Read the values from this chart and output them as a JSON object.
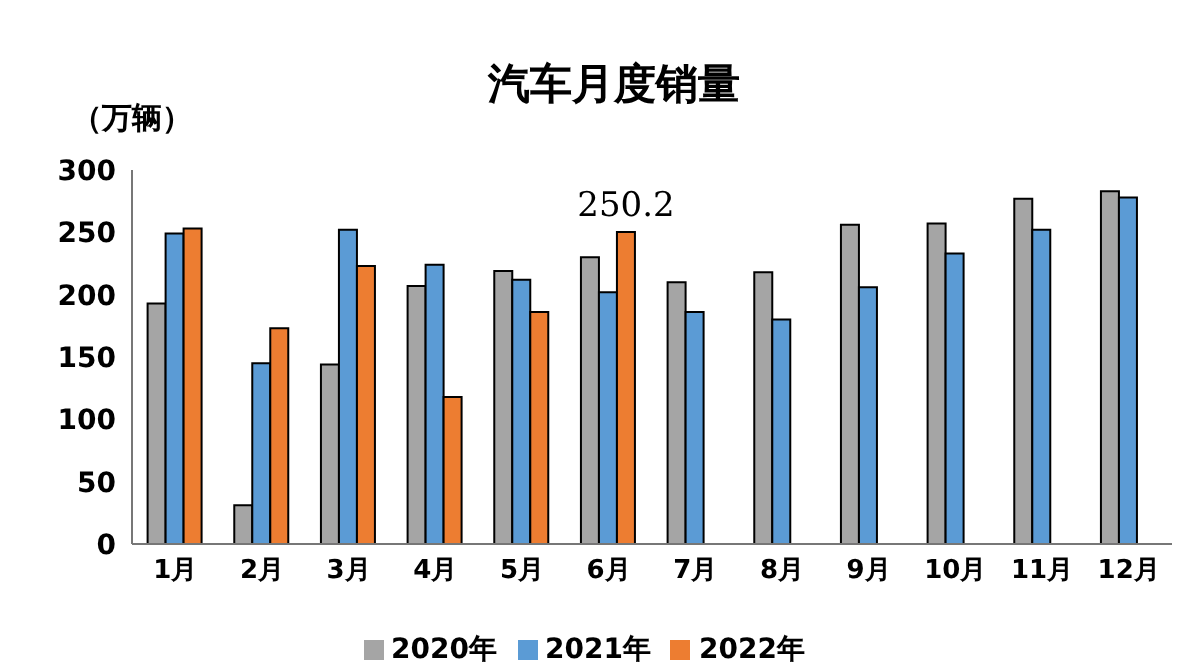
{
  "chart_data": {
    "type": "bar",
    "title": "汽车月度销量",
    "ylabel": "（万辆）",
    "categories": [
      "1月",
      "2月",
      "3月",
      "4月",
      "5月",
      "6月",
      "7月",
      "8月",
      "9月",
      "10月",
      "11月",
      "12月"
    ],
    "series": [
      {
        "name": "2020年",
        "color": "#a5a5a5",
        "values": [
          193,
          31,
          144,
          207,
          219,
          230,
          210,
          218,
          256,
          257,
          277,
          283
        ]
      },
      {
        "name": "2021年",
        "color": "#5b9bd5",
        "values": [
          249,
          145,
          252,
          224,
          212,
          202,
          186,
          180,
          206,
          233,
          252,
          278
        ]
      },
      {
        "name": "2022年",
        "color": "#ed7d31",
        "values": [
          253,
          173,
          223,
          118,
          186,
          250.2,
          null,
          null,
          null,
          null,
          null,
          null
        ],
        "value_labels": [
          null,
          null,
          null,
          null,
          null,
          "250.2",
          null,
          null,
          null,
          null,
          null,
          null
        ]
      }
    ],
    "ylim": [
      0,
      300
    ],
    "yticks": [
      0,
      50,
      100,
      150,
      200,
      250,
      300
    ],
    "grid": false,
    "legend": "bottom"
  }
}
